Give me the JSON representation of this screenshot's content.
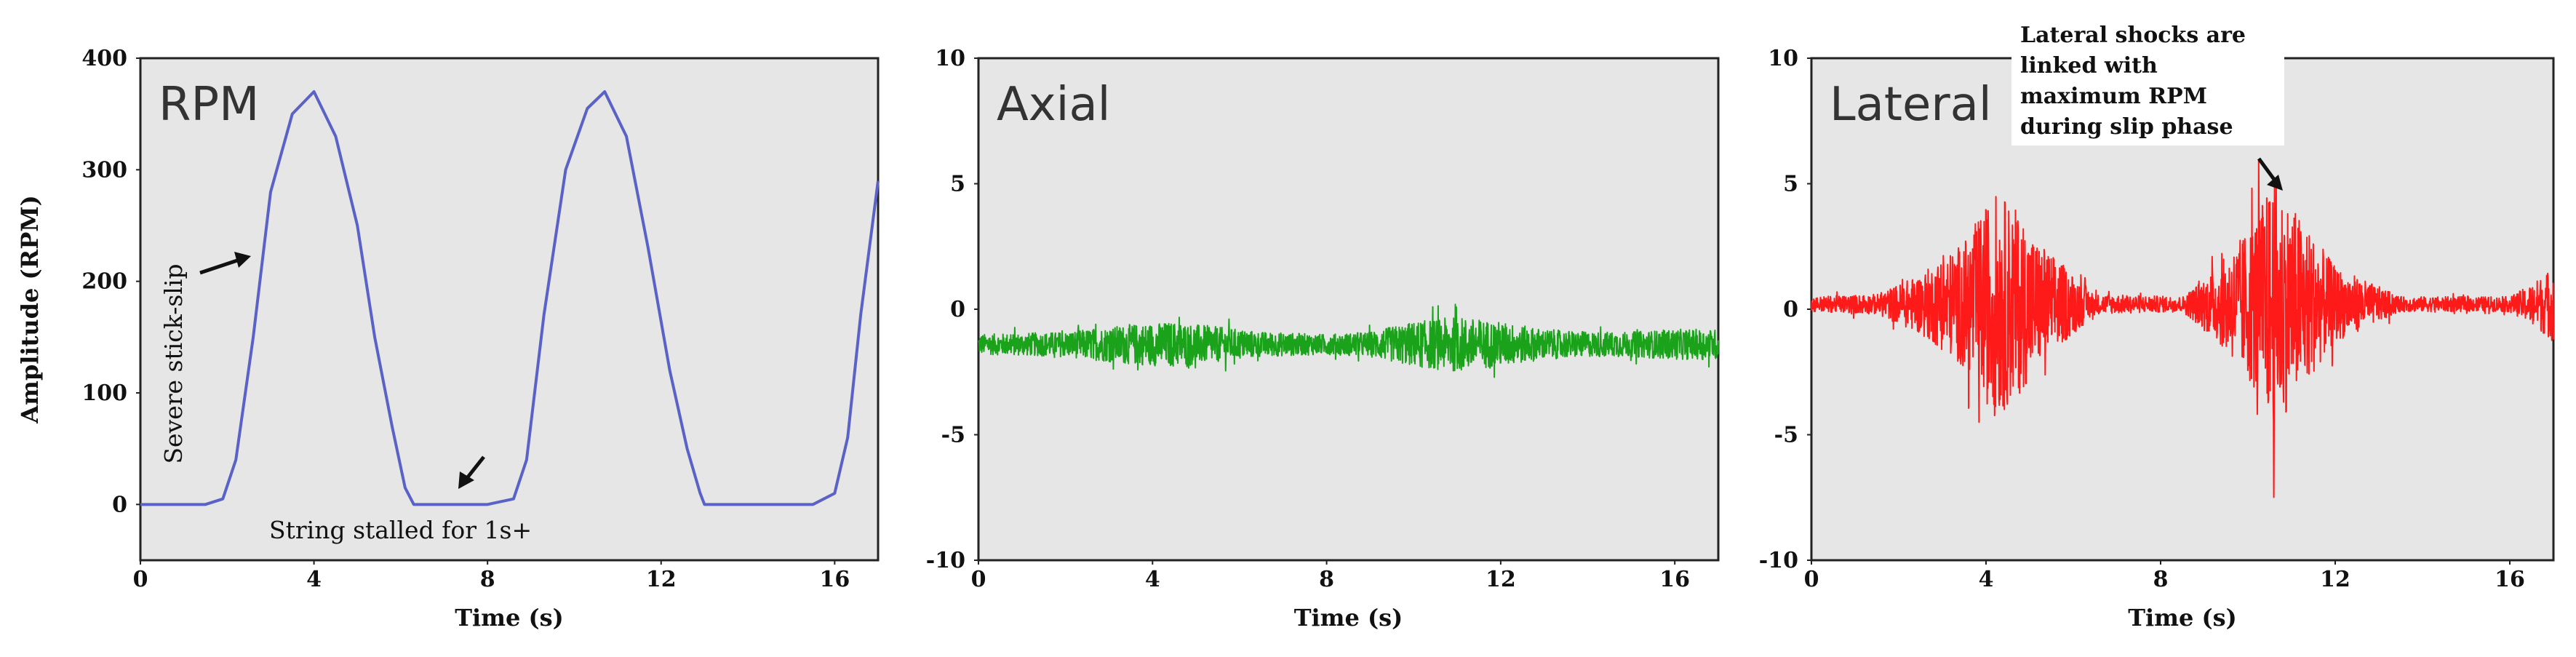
{
  "chart_data": [
    {
      "type": "line",
      "title": "RPM",
      "xlabel": "Time (s)",
      "ylabel": "Amplitude (RPM)",
      "xlim": [
        0,
        17
      ],
      "ylim": [
        -50,
        400
      ],
      "xticks": [
        0,
        4,
        8,
        12,
        16
      ],
      "yticks": [
        0,
        100,
        200,
        300,
        400
      ],
      "grid": false,
      "series": [
        {
          "color": "#5a62c8",
          "x": [
            0,
            1.5,
            1.9,
            2.2,
            2.6,
            3.0,
            3.5,
            4.0,
            4.5,
            5.0,
            5.4,
            5.8,
            6.1,
            6.3,
            7.0,
            8.0,
            8.6,
            8.9,
            9.3,
            9.8,
            10.3,
            10.7,
            11.2,
            11.7,
            12.2,
            12.6,
            12.9,
            13.0,
            14.0,
            15.5,
            16.0,
            16.3,
            16.6,
            17.0
          ],
          "y": [
            0,
            0,
            5,
            40,
            150,
            280,
            350,
            370,
            330,
            250,
            150,
            70,
            15,
            0,
            0,
            0,
            5,
            40,
            170,
            300,
            355,
            370,
            330,
            230,
            120,
            50,
            10,
            0,
            0,
            0,
            10,
            60,
            170,
            290
          ]
        }
      ],
      "annotations": [
        {
          "text": "Severe stick-slip",
          "x": 2.5,
          "y": 200
        },
        {
          "text": "String stalled for 1s+",
          "x": 7.3,
          "y": 0
        }
      ]
    },
    {
      "type": "line",
      "title": "Axial",
      "xlabel": "Time (s)",
      "ylabel": "",
      "xlim": [
        0,
        17
      ],
      "ylim": [
        -10,
        10
      ],
      "xticks": [
        0,
        4,
        8,
        12,
        16
      ],
      "yticks": [
        -10,
        -5,
        0,
        5,
        10
      ],
      "grid": false,
      "series": [
        {
          "color": "#1aa31a",
          "baseline": -1.4,
          "envelope": {
            "x": [
              0,
              2,
              2.5,
              3.5,
              4.5,
              5.5,
              6.5,
              8,
              9,
              10,
              11,
              12,
              13,
              14,
              15,
              16,
              17
            ],
            "amplitude": [
              0.4,
              0.5,
              0.6,
              0.8,
              0.9,
              0.7,
              0.5,
              0.4,
              0.5,
              0.9,
              1.1,
              0.9,
              0.6,
              0.5,
              0.5,
              0.6,
              0.6
            ]
          }
        }
      ]
    },
    {
      "type": "line",
      "title": "Lateral",
      "xlabel": "Time (s)",
      "ylabel": "",
      "xlim": [
        0,
        17
      ],
      "ylim": [
        -10,
        10
      ],
      "xticks": [
        0,
        4,
        8,
        12,
        16
      ],
      "yticks": [
        -10,
        -5,
        0,
        5,
        10
      ],
      "grid": false,
      "series": [
        {
          "color": "#ff1a1a",
          "baseline": 0.2,
          "envelope": {
            "x": [
              0,
              1.5,
              2.5,
              3.5,
              4.2,
              4.6,
              5.2,
              6.5,
              8.5,
              9.3,
              10.0,
              10.6,
              11.2,
              12.0,
              13.5,
              16.0,
              16.5,
              17.0
            ],
            "amplitude": [
              0.3,
              0.4,
              1.2,
              2.5,
              4.5,
              4.0,
              2.5,
              0.4,
              0.3,
              1.5,
              3.0,
              5.0,
              3.5,
              1.5,
              0.3,
              0.3,
              0.8,
              1.5
            ]
          }
        }
      ],
      "annotations": [
        {
          "text": [
            "Lateral shocks are",
            "linked with",
            "maximum RPM",
            "during slip phase"
          ],
          "x": 10.6,
          "y": 6
        }
      ]
    }
  ]
}
